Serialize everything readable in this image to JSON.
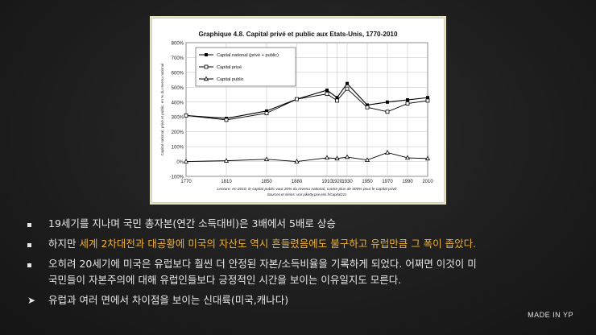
{
  "chart_data": {
    "type": "line",
    "title": "Graphique 4.8. Capital privé et public aux Etats-Unis, 1770-2010",
    "ylabel": "Capital national, privé et public, en % du revenu national",
    "note": "Lecture: en 2010, le capital public vaut 20% du revenu national, contre plus de 400% pour le capital privé",
    "source": "Sources et séries: voir piketty.pse.ens.fr/capital21c",
    "x": [
      1770,
      1810,
      1850,
      1880,
      1910,
      1920,
      1930,
      1950,
      1970,
      1990,
      2010
    ],
    "x_ticks": [
      "1770",
      "1810",
      "1850",
      "1880",
      "1910",
      "1920",
      "1930",
      "1950",
      "1970",
      "1990",
      "2010"
    ],
    "y_ticks": [
      "-100%",
      "0%",
      "100%",
      "200%",
      "300%",
      "400%",
      "500%",
      "600%",
      "700%",
      "800%"
    ],
    "ylim": [
      -100,
      800
    ],
    "grid": true,
    "legend_position": "top-left",
    "series": [
      {
        "name": "Capital national (privé + public)",
        "marker": "filled-square",
        "values": [
          310,
          290,
          340,
          420,
          480,
          430,
          525,
          380,
          400,
          415,
          430
        ]
      },
      {
        "name": "Capital privé",
        "marker": "open-square",
        "values": [
          310,
          280,
          325,
          420,
          455,
          410,
          490,
          365,
          335,
          390,
          410
        ]
      },
      {
        "name": "Capital public",
        "marker": "open-triangle",
        "values": [
          0,
          5,
          15,
          0,
          25,
          20,
          30,
          10,
          60,
          25,
          20
        ]
      }
    ]
  },
  "bullets": [
    {
      "type": "square",
      "text": "19세기를 지나며 국민 총자본(연간 소득대비)은 3배에서 5배로 상승"
    },
    {
      "type": "square",
      "prefix": "하지만 ",
      "highlight": "세계 2차대전과 대공황에 미국의 자산도 역시 흔들렸음에도 불구하고 유럽만큼 그 폭이 좁았다."
    },
    {
      "type": "square",
      "text": "오히려 20세기에 미국은 유럽보다 훨씬 더 안정된 자본/소득비율을 기록하게 되었다. 어쩌면 이것이 미"
    },
    {
      "type": "continuation",
      "text": "국민들이 자본주의에 대해 유럽인들보다 긍정적인 시간을 보이는 이유일지도 모른다."
    },
    {
      "type": "arrow",
      "text": "유럽과 여러 면에서 차이점을 보이는 신대륙(미국,캐나다)"
    }
  ],
  "brand": {
    "main": "MADE IN ",
    "suffix": "YP"
  }
}
